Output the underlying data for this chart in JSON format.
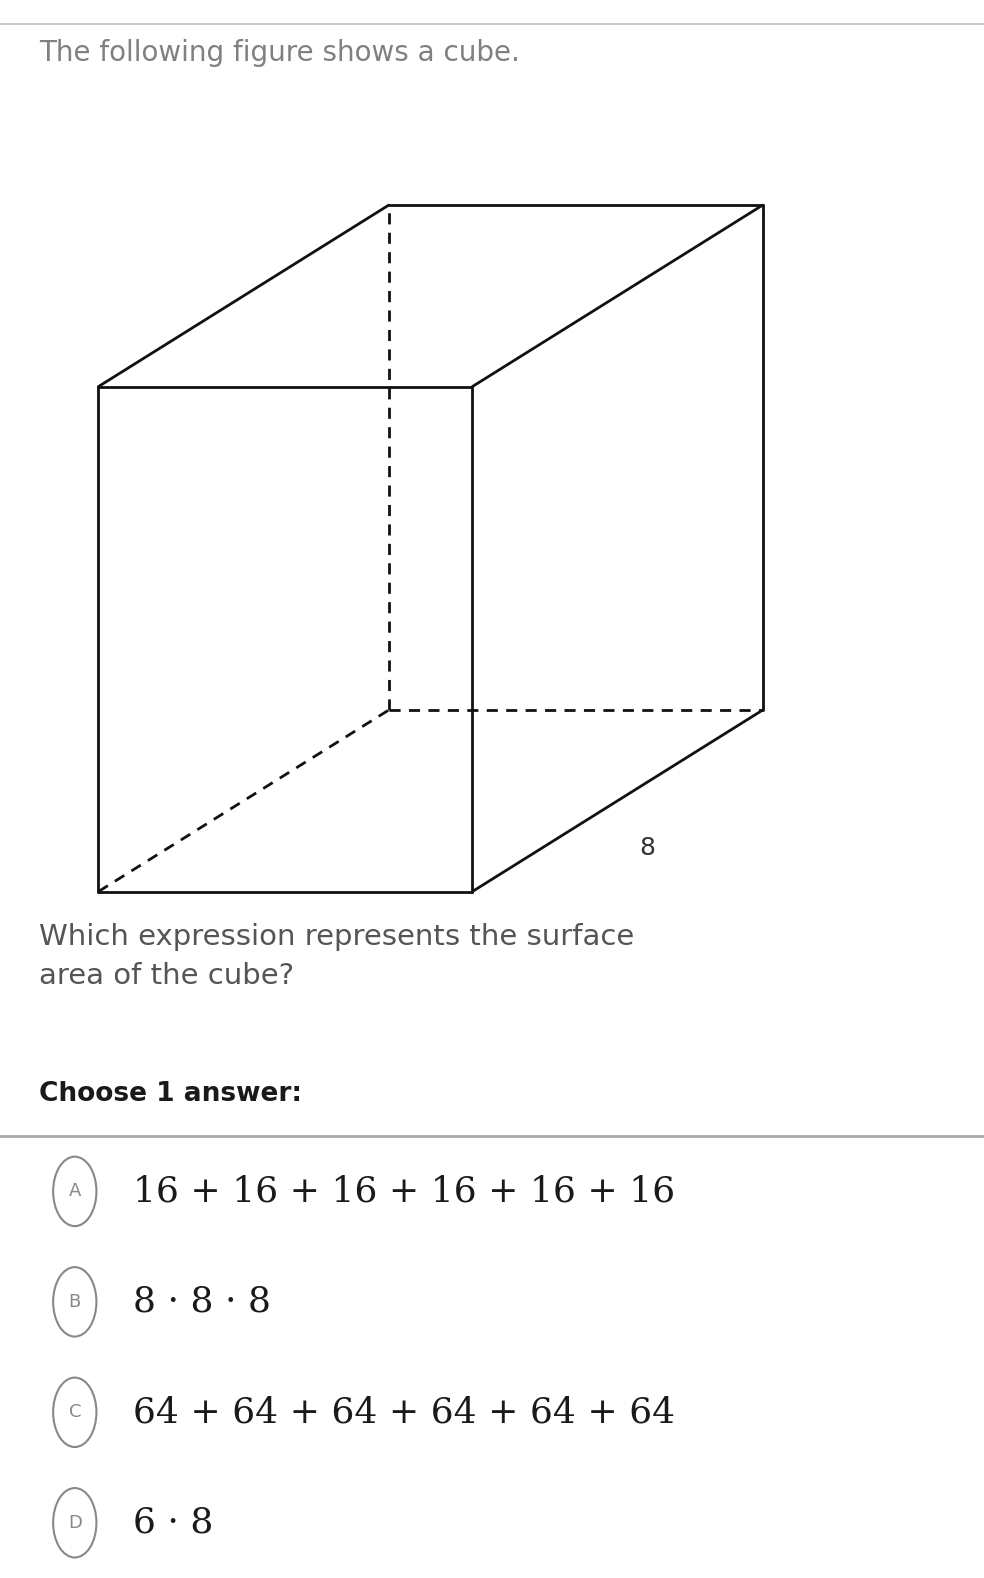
{
  "title_text": "The following figure shows a cube.",
  "title_color": "#808080",
  "title_fontsize": 20,
  "question_text": "Which expression represents the surface\narea of the cube?",
  "question_color": "#555555",
  "question_fontsize": 21,
  "choose_text": "Choose 1 answer:",
  "choose_color": "#1a1a1a",
  "choose_fontsize": 19,
  "bg_color": "#ffffff",
  "cube_label": "8",
  "cube_label_fontsize": 18,
  "cube_label_color": "#333333",
  "divider_color": "#aaaaaa",
  "answer_fontsize": 26,
  "circle_color": "#888888",
  "circle_lw": 1.5,
  "letter_fontsize": 13,
  "options": [
    {
      "letter": "A",
      "text": "16 + 16 + 16 + 16 + 16 + 16"
    },
    {
      "letter": "B",
      "text": "8 · 8 · 8"
    },
    {
      "letter": "C",
      "text": "64 + 64 + 64 + 64 + 64 + 64"
    },
    {
      "letter": "D",
      "text": "6 · 8"
    }
  ],
  "cube": {
    "fl": 0.18,
    "fr": 0.52,
    "fb": 0.28,
    "ft": 0.68,
    "ox": 0.26,
    "oy": 0.1
  }
}
